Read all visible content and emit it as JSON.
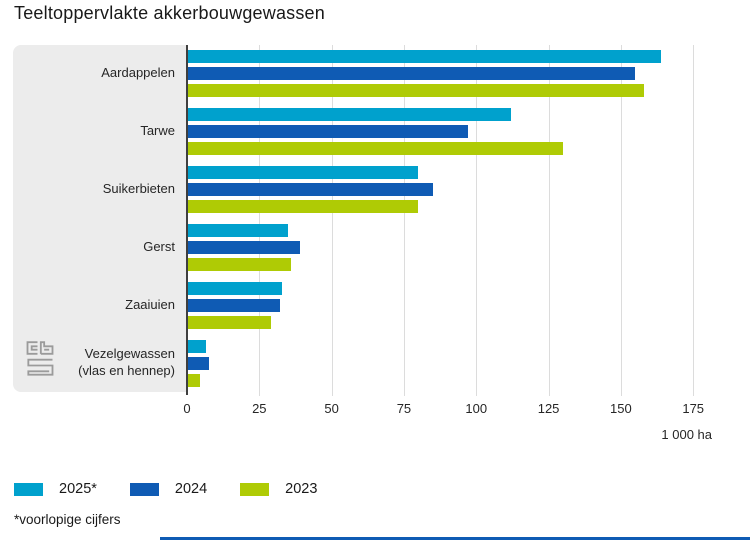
{
  "title": "Teeltoppervlakte akkerbouwgewassen",
  "footnote": "*voorlopige cijfers",
  "x_axis": {
    "ticks": [
      0,
      25,
      50,
      75,
      100,
      125,
      150,
      175
    ],
    "max": 181.5,
    "unit": "1 000 ha"
  },
  "categories": [
    [
      "Aardappelen"
    ],
    [
      "Tarwe"
    ],
    [
      "Suikerbieten"
    ],
    [
      "Gerst"
    ],
    [
      "Zaaiuien"
    ],
    [
      "Vezelgewassen",
      "(vlas en hennep)"
    ]
  ],
  "legend": [
    {
      "label": "2025*",
      "color": "#00a1cd"
    },
    {
      "label": "2024",
      "color": "#0f5bb4"
    },
    {
      "label": "2023",
      "color": "#afcb05"
    }
  ],
  "colors": {
    "series_2025": "#00a1cd",
    "series_2024": "#0f5bb4",
    "series_2023": "#afcb05",
    "panel_background": "#ececec",
    "axis_line": "#3f3f3f",
    "gridline": "#dcdcdc",
    "bottom_rule": "#0f5bb4",
    "logo_gray": "#9b9b9b"
  },
  "icons": {
    "logo": "cbs-logo"
  },
  "chart_data": {
    "type": "bar",
    "orientation": "horizontal",
    "title": "Teeltoppervlakte akkerbouwgewassen",
    "categories": [
      "Aardappelen",
      "Tarwe",
      "Suikerbieten",
      "Gerst",
      "Zaaiuien",
      "Vezelgewassen (vlas en hennep)"
    ],
    "series": [
      {
        "name": "2025*",
        "values": [
          164,
          112,
          80,
          35,
          33,
          6.5
        ]
      },
      {
        "name": "2024",
        "values": [
          155,
          97,
          85,
          39,
          32,
          7.5
        ]
      },
      {
        "name": "2023",
        "values": [
          158,
          130,
          80,
          36,
          29,
          4.5
        ]
      }
    ],
    "xlabel": "1 000 ha",
    "ylabel": "",
    "x_ticks": [
      0,
      25,
      50,
      75,
      100,
      125,
      150,
      175
    ],
    "xlim": [
      0,
      181.5
    ],
    "grid": true,
    "legend_position": "bottom",
    "footnote": "*voorlopige cijfers"
  }
}
